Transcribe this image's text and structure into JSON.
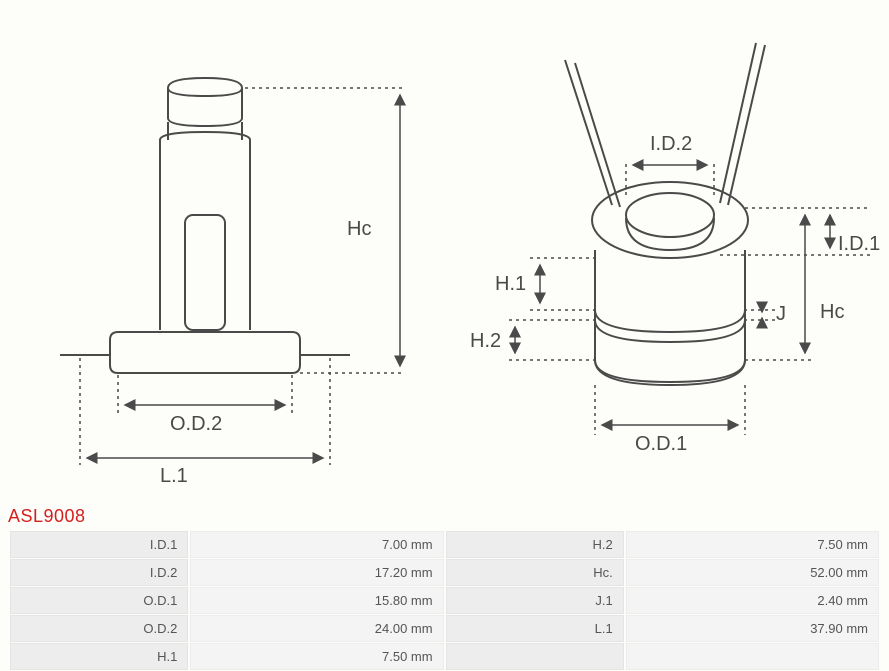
{
  "product_code": "ASL9008",
  "diagram": {
    "stroke_color": "#4a4a4a",
    "dash_color": "#4a4a4a",
    "stroke_width": 2,
    "dash_pattern": "3,4",
    "arrow_size": 7,
    "label_fontsize": 20,
    "label_color": "#4a4a4a",
    "labels": {
      "Hc_left": "Hc",
      "OD2": "O.D.2",
      "L1": "L.1",
      "ID2": "I.D.2",
      "ID1": "I.D.1",
      "J": "J",
      "Hc_right": "Hc",
      "H1": "H.1",
      "H2": "H.2",
      "OD1": "O.D.1"
    }
  },
  "specs": [
    [
      {
        "label": "I.D.1",
        "value": "7.00 mm"
      },
      {
        "label": "H.2",
        "value": "7.50 mm"
      }
    ],
    [
      {
        "label": "I.D.2",
        "value": "17.20 mm"
      },
      {
        "label": "Hc.",
        "value": "52.00 mm"
      }
    ],
    [
      {
        "label": "O.D.1",
        "value": "15.80 mm"
      },
      {
        "label": "J.1",
        "value": "2.40 mm"
      }
    ],
    [
      {
        "label": "O.D.2",
        "value": "24.00 mm"
      },
      {
        "label": "L.1",
        "value": "37.90 mm"
      }
    ],
    [
      {
        "label": "H.1",
        "value": "7.50 mm"
      },
      null
    ]
  ],
  "table_style": {
    "label_bg": "#ededed",
    "value_bg": "#f4f4f4",
    "text_color": "#555555",
    "code_color": "#d62020",
    "fontsize": 13
  }
}
